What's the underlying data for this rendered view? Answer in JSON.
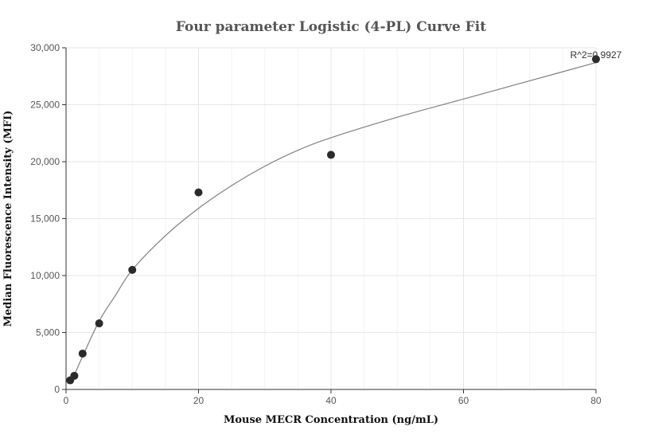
{
  "chart_data": {
    "type": "scatter",
    "title": "Four parameter Logistic (4-PL) Curve Fit",
    "xlabel": "Mouse MECR Concentration (ng/mL)",
    "ylabel": "Median Fluorescence Intensity (MFI)",
    "xlim": [
      0,
      80
    ],
    "ylim": [
      0,
      30000
    ],
    "x_ticks": [
      0,
      20,
      40,
      60,
      80
    ],
    "x_tick_labels": [
      "0",
      "20",
      "40",
      "60",
      "80"
    ],
    "y_ticks": [
      0,
      5000,
      10000,
      15000,
      20000,
      25000,
      30000
    ],
    "y_tick_labels": [
      "0",
      "5,000",
      "10,000",
      "15,000",
      "20,000",
      "25,000",
      "30,000"
    ],
    "grid": true,
    "annotation": "R^2=0.9927",
    "series": [
      {
        "type": "scatter",
        "x": [
          0.625,
          1.25,
          2.5,
          5,
          10,
          20,
          40,
          80
        ],
        "y": [
          800,
          1200,
          3150,
          5800,
          10500,
          17300,
          20600,
          29000
        ]
      }
    ],
    "fit_curve": {
      "x": [
        0.625,
        1.25,
        2.5,
        5,
        7.5,
        10,
        15,
        20,
        25,
        30,
        35,
        40,
        50,
        60,
        70,
        80
      ],
      "y": [
        750,
        1300,
        2900,
        6000,
        8300,
        10500,
        13500,
        15900,
        17900,
        19600,
        21000,
        22100,
        23900,
        25500,
        27100,
        28700
      ]
    },
    "colors": {
      "points": "#2b2b2b",
      "curve": "#808080",
      "grid": "#e6e6e6"
    }
  }
}
